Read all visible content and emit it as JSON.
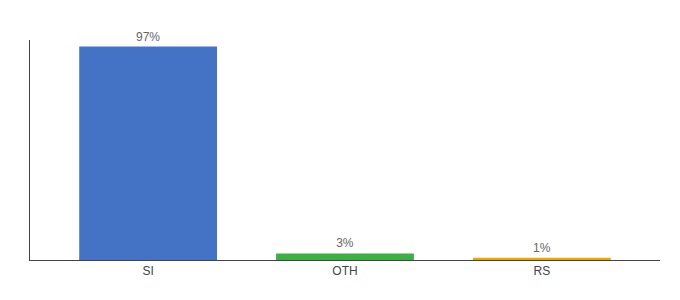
{
  "chart_data": {
    "type": "bar",
    "categories": [
      "SI",
      "OTH",
      "RS"
    ],
    "values": [
      97,
      3,
      1
    ],
    "value_labels": [
      "97%",
      "3%",
      "1%"
    ],
    "colors": [
      "#4472c4",
      "#3cb043",
      "#f0a500"
    ],
    "ylim": [
      0,
      100
    ],
    "data_labels": true,
    "tick_labels": "x",
    "grid": false
  }
}
